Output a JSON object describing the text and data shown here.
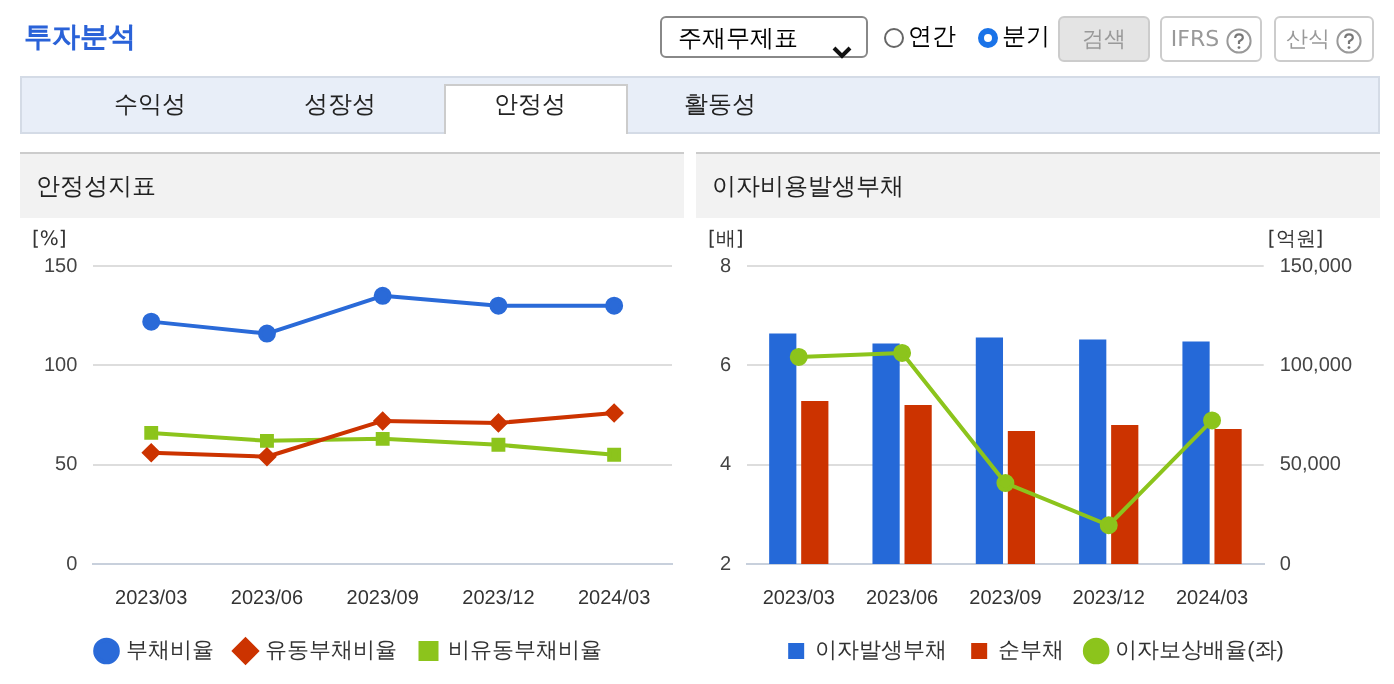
{
  "chart_data": [
    {
      "type": "other",
      "title": "투자분석",
      "annotations": [
        "주재무제표",
        "연간",
        "분기",
        "검색",
        "IFRS",
        "산식",
        "수익성",
        "성장성",
        "안정성",
        "활동성"
      ]
    },
    {
      "type": "line",
      "title": "안정성지표",
      "ylabel": "[%]",
      "categories": [
        "2023/03",
        "2023/06",
        "2023/09",
        "2023/12",
        "2024/03"
      ],
      "ylim": [
        0,
        150
      ],
      "yticks": [
        0,
        50,
        100,
        150
      ],
      "grid": "y",
      "legend": "bottom",
      "series": [
        {
          "name": "부채비율",
          "color": "#2a6ad8",
          "marker": "circle",
          "values": [
            122,
            116,
            135,
            130,
            130
          ]
        },
        {
          "name": "유동부채비율",
          "color": "#cc3300",
          "marker": "diamond",
          "values": [
            56,
            54,
            72,
            71,
            76
          ]
        },
        {
          "name": "비유동부채비율",
          "color": "#8cc41c",
          "marker": "square",
          "values": [
            66,
            62,
            63,
            60,
            55
          ]
        }
      ]
    },
    {
      "type": "bar",
      "title": "이자비용발생부채",
      "ylabel": "[배]",
      "y2label": "[억원]",
      "categories": [
        "2023/03",
        "2023/06",
        "2023/09",
        "2023/12",
        "2024/03"
      ],
      "ylim": [
        2,
        8
      ],
      "yticks": [
        2,
        4,
        6,
        8
      ],
      "y2lim": [
        0,
        150000
      ],
      "y2ticks": [
        0,
        {
          "value": 50000,
          "label": "50,000"
        },
        {
          "value": 100000,
          "label": "100,000"
        },
        {
          "value": 150000,
          "label": "150,000"
        }
      ],
      "grid": "y",
      "legend": "bottom",
      "series": [
        {
          "name": "이자발생부채",
          "color": "#2569d8",
          "axis": "y2",
          "values": [
            116000,
            111000,
            114000,
            113000,
            112000
          ]
        },
        {
          "name": "순부채",
          "color": "#cc3300",
          "axis": "y2",
          "values": [
            82000,
            80000,
            67000,
            70000,
            68000
          ]
        },
        {
          "name": "이자보상배율(좌)",
          "type": "line",
          "color": "#8cc41c",
          "marker": "circle",
          "values": [
            6.17,
            6.25,
            3.63,
            2.78,
            4.89
          ]
        }
      ]
    }
  ]
}
